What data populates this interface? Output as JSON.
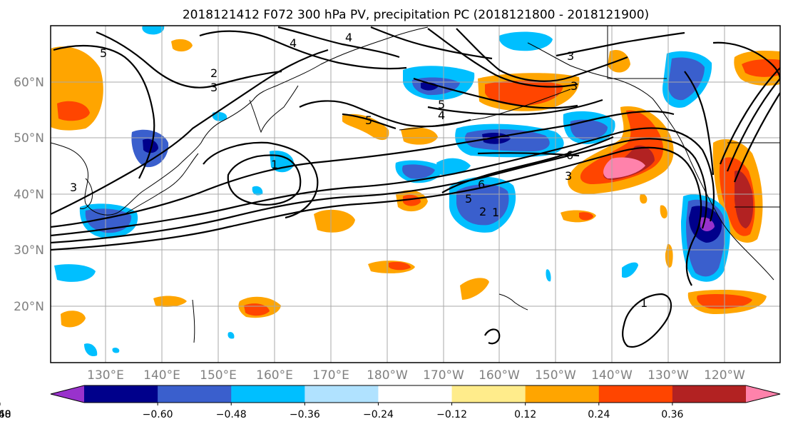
{
  "title": "2018121412 F072 300 hPa PV, precipitation PC (2018121800 - 2018121900)",
  "lat_labels": [
    "60°N",
    "50°N",
    "40°N",
    "30°N",
    "20°N"
  ],
  "lon_labels": [
    "130°E",
    "140°E",
    "150°E",
    "160°E",
    "170°E",
    "180°W",
    "170°W",
    "160°W",
    "150°W",
    "140°W",
    "130°W",
    "120°W"
  ],
  "pv_contour_labels": [
    "1",
    "2",
    "3",
    "4",
    "5",
    "6"
  ],
  "colorbar": {
    "colors": [
      "#9932cc",
      "#00008b",
      "#3a5fcd",
      "#00bfff",
      "#b0e2ff",
      "#ffffff",
      "#ffec8b",
      "#ffa500",
      "#ff4500",
      "#b22222",
      "#ff82ab"
    ],
    "tick_labels": [
      "−0.60",
      "−0.48",
      "−0.36",
      "−0.24",
      "−0.12",
      "0.12",
      "0.24",
      "0.36",
      "0.48",
      "0.60"
    ]
  },
  "chart_data": {
    "type": "heatmap",
    "title": "2018121412 F072 300 hPa PV, precipitation PC (2018121800 - 2018121900)",
    "fields": [
      "300 hPa PV (contours)",
      "precipitation PC (shaded)"
    ],
    "lon_ticks": [
      "130°E",
      "140°E",
      "150°E",
      "160°E",
      "170°E",
      "180°W",
      "170°W",
      "160°W",
      "150°W",
      "140°W",
      "130°W",
      "120°W"
    ],
    "lat_ticks": [
      "60°N",
      "50°N",
      "40°N",
      "30°N",
      "20°N"
    ],
    "contour_levels": [
      1,
      2,
      3,
      4,
      5,
      6
    ],
    "color_levels": [
      -0.6,
      -0.48,
      -0.36,
      -0.24,
      -0.12,
      0.12,
      0.24,
      0.36,
      0.48,
      0.6
    ],
    "grid": true
  }
}
